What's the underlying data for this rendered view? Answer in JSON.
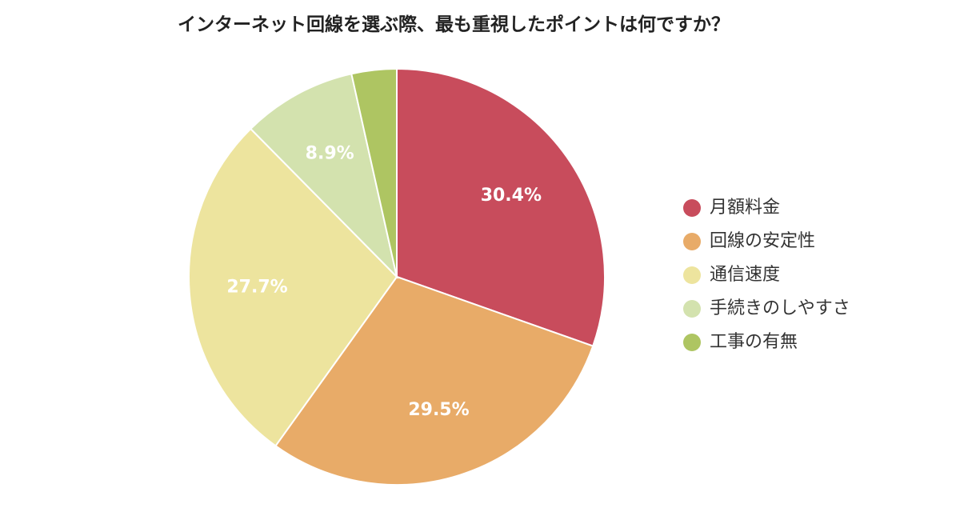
{
  "chart_data": {
    "type": "pie",
    "title": "インターネット回線を選ぶ際、最も重視したポイントは何ですか？",
    "legend_position": "right",
    "slices": [
      {
        "name": "月額料金",
        "value": 30.4,
        "label": "30.4%",
        "color": "#c84c5c"
      },
      {
        "name": "回線の安定性",
        "value": 29.5,
        "label": "29.5%",
        "color": "#e8ab68"
      },
      {
        "name": "通信速度",
        "value": 27.7,
        "label": "27.7%",
        "color": "#ede49e"
      },
      {
        "name": "手続きのしやすさ",
        "value": 8.9,
        "label": "8.9%",
        "color": "#d3e2ae"
      },
      {
        "name": "工事の有無",
        "value": 3.5,
        "label": "",
        "color": "#aec562"
      }
    ]
  }
}
